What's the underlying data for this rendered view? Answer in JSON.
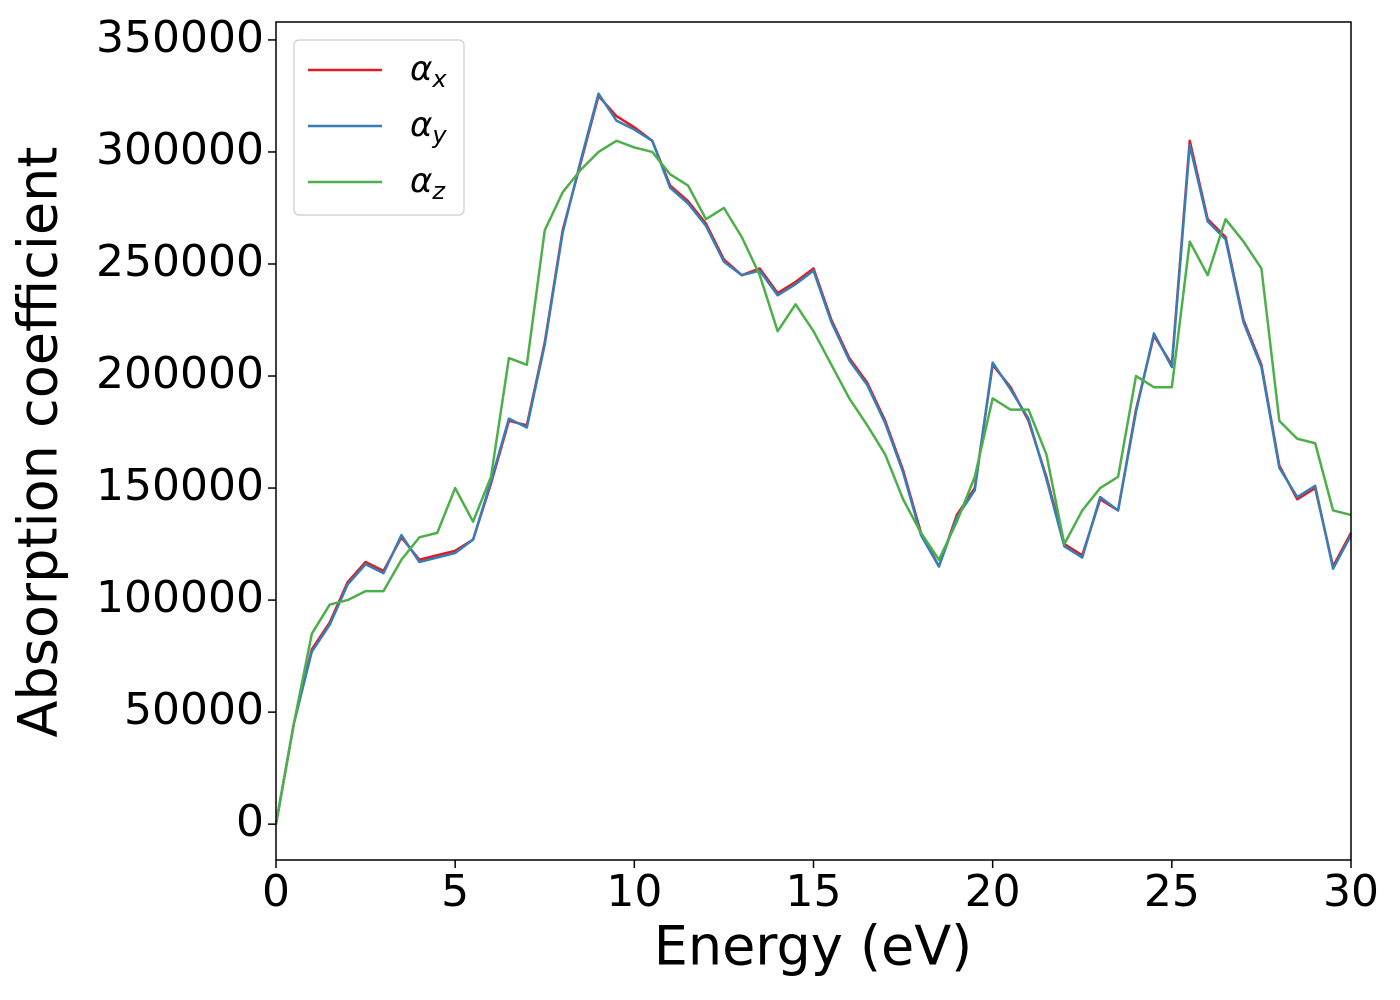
{
  "chart_data": {
    "type": "line",
    "xlabel": "Energy (eV)",
    "ylabel": "Absorption coefficient",
    "x": [
      0,
      0.5,
      1,
      1.5,
      2,
      2.5,
      3,
      3.5,
      4,
      4.5,
      5,
      5.5,
      6,
      6.5,
      7,
      7.5,
      8,
      8.5,
      9,
      9.5,
      10,
      10.5,
      11,
      11.5,
      12,
      12.5,
      13,
      13.5,
      14,
      14.5,
      15,
      15.5,
      16,
      16.5,
      17,
      17.5,
      18,
      18.5,
      19,
      19.5,
      20,
      20.5,
      21,
      21.5,
      22,
      22.5,
      23,
      23.5,
      24,
      24.5,
      25,
      25.5,
      26,
      26.5,
      27,
      27.5,
      28,
      28.5,
      29,
      29.5,
      30
    ],
    "series": [
      {
        "name": "α_x",
        "color": "#e41a1c",
        "values": [
          0,
          45000,
          78000,
          90000,
          108000,
          117000,
          113000,
          128000,
          118000,
          120000,
          122000,
          127000,
          152000,
          180000,
          178000,
          215000,
          265000,
          295000,
          325000,
          316000,
          311000,
          305000,
          285000,
          278000,
          268000,
          252000,
          245000,
          248000,
          237000,
          242000,
          248000,
          225000,
          208000,
          197000,
          180000,
          158000,
          130000,
          115000,
          138000,
          150000,
          205000,
          195000,
          180000,
          155000,
          125000,
          120000,
          145000,
          140000,
          185000,
          218000,
          205000,
          305000,
          270000,
          262000,
          225000,
          205000,
          160000,
          145000,
          150000,
          115000,
          130000
        ]
      },
      {
        "name": "α_y",
        "color": "#377eb8",
        "values": [
          0,
          45000,
          77000,
          89000,
          107000,
          116000,
          112000,
          129000,
          117000,
          119000,
          121000,
          127000,
          153000,
          181000,
          177000,
          214000,
          264000,
          296000,
          326000,
          314000,
          310000,
          305000,
          284000,
          277000,
          267000,
          251000,
          245000,
          247000,
          236000,
          241000,
          247000,
          224000,
          207000,
          196000,
          179000,
          157000,
          129000,
          115000,
          137000,
          149000,
          206000,
          194000,
          181000,
          154000,
          124000,
          119000,
          146000,
          140000,
          184000,
          219000,
          204000,
          303000,
          269000,
          261000,
          224000,
          204000,
          159000,
          146000,
          151000,
          114000,
          129000
        ]
      },
      {
        "name": "α_z",
        "color": "#4daf4a",
        "values": [
          0,
          45000,
          85000,
          98000,
          100000,
          104000,
          104000,
          118000,
          128000,
          130000,
          150000,
          135000,
          155000,
          208000,
          205000,
          265000,
          282000,
          292000,
          300000,
          305000,
          302000,
          300000,
          290000,
          285000,
          270000,
          275000,
          262000,
          245000,
          220000,
          232000,
          220000,
          205000,
          190000,
          178000,
          165000,
          145000,
          130000,
          118000,
          135000,
          155000,
          190000,
          185000,
          185000,
          165000,
          125000,
          140000,
          150000,
          155000,
          200000,
          195000,
          195000,
          260000,
          245000,
          270000,
          260000,
          248000,
          180000,
          172000,
          170000,
          140000,
          138000
        ]
      }
    ],
    "xlim": [
      0,
      30
    ],
    "xticks": [
      0,
      5,
      10,
      15,
      20,
      25,
      30
    ],
    "ylim": [
      -16000,
      358000
    ],
    "yticks": [
      0,
      50000,
      100000,
      150000,
      200000,
      250000,
      300000,
      350000
    ],
    "legend": "upper left"
  }
}
